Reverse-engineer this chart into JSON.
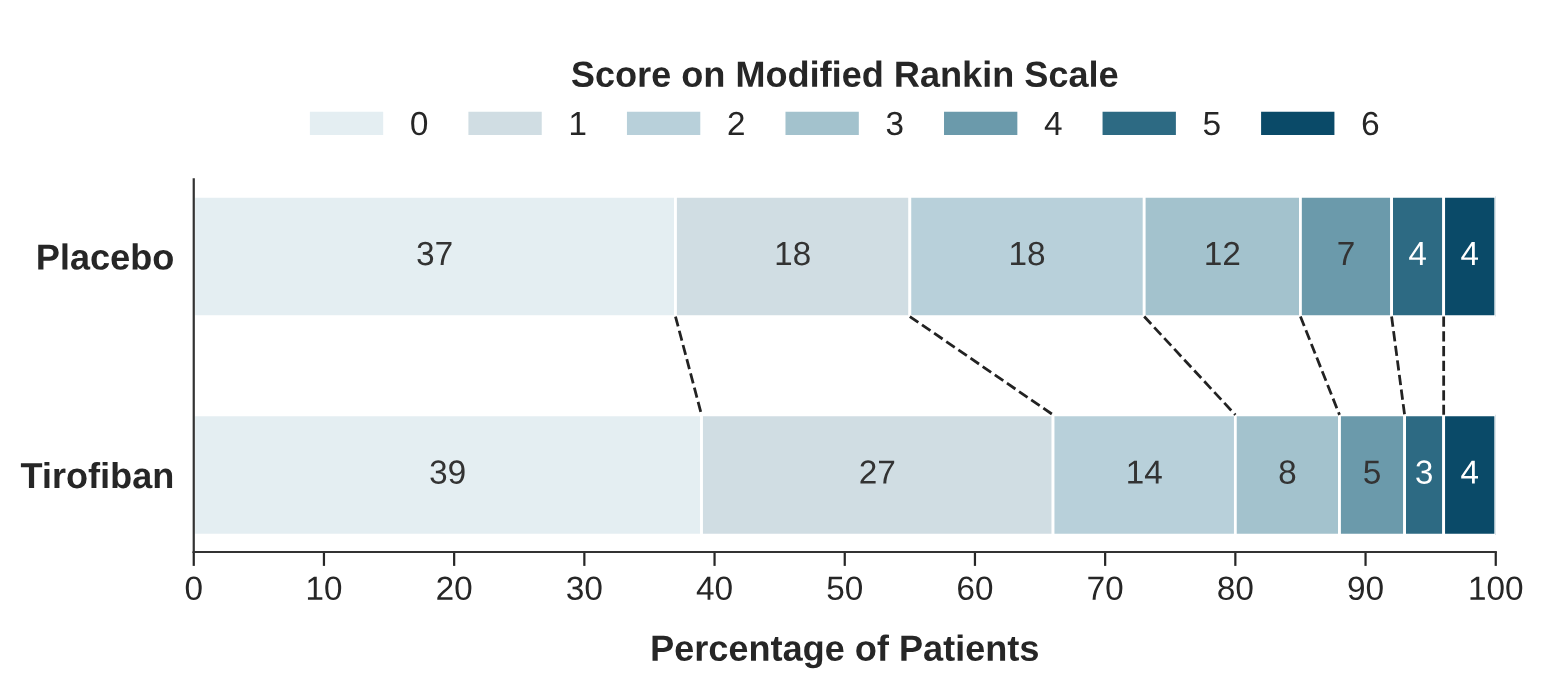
{
  "chart_data": {
    "type": "bar",
    "orientation": "horizontal",
    "stacked": true,
    "data_labels": true,
    "legend": "top",
    "legend_title": "Score on Modified Rankin Scale",
    "xlabel": "Percentage of Patients",
    "categories": [
      "Placebo",
      "Tirofiban"
    ],
    "xlim": [
      0,
      100
    ],
    "xticks": [
      0,
      10,
      20,
      30,
      40,
      50,
      60,
      70,
      80,
      90,
      100
    ],
    "grid": false,
    "series": [
      {
        "name": "0",
        "color": "#e4eef2",
        "values": [
          37,
          39
        ]
      },
      {
        "name": "1",
        "color": "#d0dde3",
        "values": [
          18,
          27
        ]
      },
      {
        "name": "2",
        "color": "#b8d0da",
        "values": [
          18,
          14
        ]
      },
      {
        "name": "3",
        "color": "#a3c2cd",
        "values": [
          12,
          8
        ]
      },
      {
        "name": "4",
        "color": "#6b9aab",
        "values": [
          7,
          5
        ]
      },
      {
        "name": "5",
        "color": "#2d6a83",
        "values": [
          4,
          3
        ]
      },
      {
        "name": "6",
        "color": "#0a4a68",
        "values": [
          4,
          4
        ]
      }
    ]
  }
}
